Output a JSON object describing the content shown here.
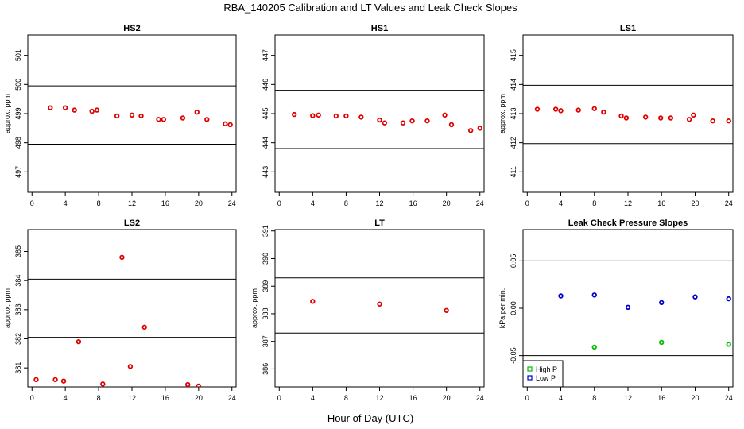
{
  "figure": {
    "title": "RBA_140205  Calibration and LT Values and Leak Check Slopes",
    "xlabel": "Hour of Day (UTC)"
  },
  "colors": {
    "point_red": "#e00000",
    "high_p": "#00bb00",
    "low_p": "#0000cc",
    "line": "#000000"
  },
  "chart_data": [
    {
      "type": "scatter",
      "title": "HS2",
      "ylabel": "approx. ppm",
      "xlim": [
        -0.5,
        24.5
      ],
      "xticks": [
        0,
        4,
        8,
        12,
        16,
        20,
        24
      ],
      "ylim": [
        496.3,
        501.7
      ],
      "yticks": [
        497,
        498,
        499,
        500,
        501
      ],
      "hlines": [
        497.95,
        499.95
      ],
      "series": [
        {
          "name": "HS2",
          "color": "#e00000",
          "x": [
            2.2,
            4,
            5.1,
            7.2,
            7.8,
            10.2,
            12,
            13.1,
            15.2,
            15.8,
            18.1,
            19.8,
            21,
            23.2,
            23.8
          ],
          "y": [
            499.2,
            499.2,
            499.12,
            499.08,
            499.12,
            498.92,
            498.95,
            498.92,
            498.8,
            498.8,
            498.85,
            499.05,
            498.8,
            498.65,
            498.62
          ]
        }
      ]
    },
    {
      "type": "scatter",
      "title": "HS1",
      "ylabel": "",
      "xlim": [
        -0.5,
        24.5
      ],
      "xticks": [
        0,
        4,
        8,
        12,
        16,
        20,
        24
      ],
      "ylim": [
        442.3,
        447.7
      ],
      "yticks": [
        443,
        444,
        445,
        446,
        447
      ],
      "hlines": [
        443.8,
        445.8
      ],
      "series": [
        {
          "name": "HS1",
          "color": "#e00000",
          "x": [
            1.8,
            4,
            4.7,
            6.8,
            8,
            9.8,
            12,
            12.6,
            14.8,
            15.9,
            17.7,
            19.8,
            20.6,
            22.9,
            24
          ],
          "y": [
            444.97,
            444.93,
            444.95,
            444.92,
            444.92,
            444.88,
            444.78,
            444.68,
            444.68,
            444.75,
            444.75,
            444.95,
            444.62,
            444.42,
            444.5
          ]
        }
      ]
    },
    {
      "type": "scatter",
      "title": "LS1",
      "ylabel": "approx. ppm",
      "xlim": [
        -0.5,
        24.5
      ],
      "xticks": [
        0,
        4,
        8,
        12,
        16,
        20,
        24
      ],
      "ylim": [
        410.3,
        415.7
      ],
      "yticks": [
        411,
        412,
        413,
        414,
        415
      ],
      "hlines": [
        411.97,
        413.97
      ],
      "series": [
        {
          "name": "LS1",
          "color": "#e00000",
          "x": [
            1.2,
            3.4,
            4,
            6.1,
            8,
            9.1,
            11.2,
            11.8,
            14.1,
            15.9,
            17.1,
            19.3,
            19.8,
            22.1,
            24
          ],
          "y": [
            413.15,
            413.15,
            413.1,
            413.12,
            413.17,
            413.05,
            412.92,
            412.85,
            412.88,
            412.85,
            412.85,
            412.8,
            412.95,
            412.75,
            412.75
          ]
        }
      ]
    },
    {
      "type": "scatter",
      "title": "LS2",
      "ylabel": "approx. ppm",
      "xlim": [
        -0.5,
        24.5
      ],
      "xticks": [
        0,
        4,
        8,
        12,
        16,
        20,
        24
      ],
      "ylim": [
        380.35,
        385.75
      ],
      "yticks": [
        381,
        382,
        383,
        384,
        385
      ],
      "hlines": [
        382.05,
        384.05
      ],
      "series": [
        {
          "name": "LS2",
          "color": "#e00000",
          "x": [
            0.5,
            2.8,
            3.8,
            5.6,
            8.5,
            10.8,
            11.8,
            13.5,
            18.7,
            20
          ],
          "y": [
            380.6,
            380.6,
            380.55,
            381.9,
            380.45,
            384.8,
            381.05,
            382.4,
            380.43,
            380.38
          ]
        }
      ]
    },
    {
      "type": "scatter",
      "title": "LT",
      "ylabel": "approx. ppm",
      "xlim": [
        -0.5,
        24.5
      ],
      "xticks": [
        0,
        4,
        8,
        12,
        16,
        20,
        24
      ],
      "ylim": [
        385.35,
        391.05
      ],
      "yticks": [
        386,
        387,
        388,
        389,
        390,
        391
      ],
      "hlines": [
        387.3,
        389.3
      ],
      "series": [
        {
          "name": "LT",
          "color": "#e00000",
          "x": [
            4,
            12,
            20
          ],
          "y": [
            388.45,
            388.35,
            388.12
          ]
        }
      ]
    },
    {
      "type": "scatter",
      "title": "Leak Check Pressure Slopes",
      "ylabel": "kPa per min.",
      "xlim": [
        -0.5,
        24.5
      ],
      "xticks": [
        0,
        4,
        8,
        12,
        16,
        20,
        24
      ],
      "ylim": [
        -0.083,
        0.083
      ],
      "yticks": [
        -0.05,
        0.0,
        0.05
      ],
      "ytick_labels": [
        "-0.05",
        "0.00",
        "0.05"
      ],
      "hlines": [
        -0.05,
        0.05
      ],
      "legend": {
        "position": "bottom-left",
        "entries": [
          "High P",
          "Low P"
        ]
      },
      "series": [
        {
          "name": "High P",
          "color": "#00bb00",
          "x": [
            8,
            16,
            24
          ],
          "y": [
            -0.041,
            -0.036,
            -0.038
          ]
        },
        {
          "name": "Low P",
          "color": "#0000cc",
          "x": [
            4,
            8,
            12,
            16,
            20,
            24
          ],
          "y": [
            0.013,
            0.014,
            0.001,
            0.006,
            0.012,
            0.01
          ]
        }
      ]
    }
  ]
}
